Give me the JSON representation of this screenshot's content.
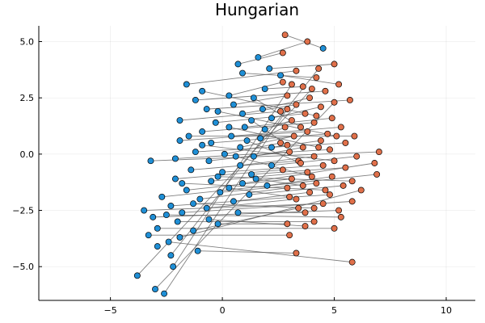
{
  "chart_data": {
    "type": "scatter",
    "title": "Hungarian",
    "xlabel": "",
    "ylabel": "",
    "xlim": [
      -8.2,
      11.3
    ],
    "ylim": [
      -6.5,
      5.7
    ],
    "xticks": [
      -5,
      0,
      5,
      10
    ],
    "yticks": [
      -5.0,
      -2.5,
      0.0,
      2.5,
      5.0
    ],
    "xtick_labels": [
      "−5",
      "0",
      "5",
      "10"
    ],
    "ytick_labels": [
      "−5.0",
      "−2.5",
      "0.0",
      "2.5",
      "5.0"
    ],
    "grid": true,
    "legend": "none",
    "colors": {
      "blue": "#1f8fd6",
      "orange": "#e0704a",
      "line": "#555555"
    },
    "series": [
      {
        "values": [
          [
            4.5,
            4.7
          ],
          [
            1.6,
            4.3
          ],
          [
            0.7,
            4.0
          ],
          [
            2.1,
            3.8
          ],
          [
            -1.6,
            3.1
          ],
          [
            0.9,
            3.6
          ],
          [
            2.6,
            3.5
          ],
          [
            0.3,
            2.6
          ],
          [
            1.9,
            2.9
          ],
          [
            -1.2,
            2.4
          ],
          [
            0.5,
            2.2
          ],
          [
            1.8,
            2.0
          ],
          [
            -0.7,
            2.0
          ],
          [
            0.9,
            1.8
          ],
          [
            2.2,
            1.6
          ],
          [
            -1.9,
            1.5
          ],
          [
            -0.3,
            1.4
          ],
          [
            1.0,
            1.2
          ],
          [
            1.9,
            1.1
          ],
          [
            -0.9,
            1.0
          ],
          [
            0.4,
            0.8
          ],
          [
            1.7,
            0.7
          ],
          [
            -1.9,
            0.6
          ],
          [
            -0.5,
            0.5
          ],
          [
            0.8,
            0.3
          ],
          [
            2.2,
            0.3
          ],
          [
            -1.2,
            0.1
          ],
          [
            0.1,
            0.0
          ],
          [
            1.4,
            -0.1
          ],
          [
            -2.1,
            -0.2
          ],
          [
            -0.6,
            -0.3
          ],
          [
            0.8,
            -0.5
          ],
          [
            2.2,
            -0.5
          ],
          [
            -3.2,
            -0.3
          ],
          [
            -1.4,
            -0.7
          ],
          [
            0.0,
            -0.8
          ],
          [
            1.3,
            -0.9
          ],
          [
            -2.1,
            -1.1
          ],
          [
            -0.5,
            -1.2
          ],
          [
            0.9,
            -1.3
          ],
          [
            2.0,
            -1.4
          ],
          [
            -1.6,
            -1.6
          ],
          [
            -0.1,
            -1.7
          ],
          [
            1.2,
            -1.8
          ],
          [
            -2.7,
            -1.9
          ],
          [
            -1.0,
            -2.0
          ],
          [
            0.5,
            -2.1
          ],
          [
            -2.3,
            -2.3
          ],
          [
            -0.7,
            -2.4
          ],
          [
            -3.5,
            -2.5
          ],
          [
            -1.8,
            -2.6
          ],
          [
            0.7,
            -2.6
          ],
          [
            -3.1,
            -2.8
          ],
          [
            -2.0,
            -3.0
          ],
          [
            -0.2,
            -3.1
          ],
          [
            -2.9,
            -3.3
          ],
          [
            -1.3,
            -3.4
          ],
          [
            -3.3,
            -3.6
          ],
          [
            -2.4,
            -3.9
          ],
          [
            -1.1,
            -4.3
          ],
          [
            -2.3,
            -4.5
          ],
          [
            -2.2,
            -5.0
          ],
          [
            -3.8,
            -5.4
          ],
          [
            -3.0,
            -6.0
          ],
          [
            -2.6,
            -6.2
          ],
          [
            -0.9,
            2.8
          ],
          [
            1.4,
            2.5
          ],
          [
            -0.2,
            1.9
          ],
          [
            1.3,
            1.5
          ],
          [
            0.3,
            1.2
          ],
          [
            -1.5,
            0.8
          ],
          [
            1.1,
            0.6
          ],
          [
            -0.9,
            0.4
          ],
          [
            0.6,
            -0.1
          ],
          [
            -0.2,
            -1.0
          ],
          [
            1.5,
            -1.1
          ],
          [
            -1.8,
            -1.3
          ],
          [
            0.3,
            -1.5
          ],
          [
            -1.3,
            -2.2
          ],
          [
            -2.5,
            -2.7
          ],
          [
            -0.6,
            -2.9
          ],
          [
            -1.9,
            -3.7
          ],
          [
            -2.9,
            -4.1
          ]
        ]
      },
      {
        "values": [
          [
            2.8,
            5.3
          ],
          [
            3.8,
            5.0
          ],
          [
            2.7,
            4.5
          ],
          [
            5.0,
            4.0
          ],
          [
            3.3,
            3.7
          ],
          [
            4.2,
            3.4
          ],
          [
            5.2,
            3.1
          ],
          [
            2.7,
            3.2
          ],
          [
            3.6,
            3.0
          ],
          [
            4.6,
            2.8
          ],
          [
            2.9,
            2.6
          ],
          [
            3.9,
            2.5
          ],
          [
            5.7,
            2.4
          ],
          [
            3.3,
            2.2
          ],
          [
            4.4,
            2.1
          ],
          [
            2.6,
            1.9
          ],
          [
            3.7,
            1.8
          ],
          [
            4.9,
            1.6
          ],
          [
            3.1,
            1.5
          ],
          [
            4.1,
            1.4
          ],
          [
            5.3,
            1.2
          ],
          [
            2.8,
            1.2
          ],
          [
            3.8,
            1.0
          ],
          [
            4.7,
            0.9
          ],
          [
            3.2,
            0.8
          ],
          [
            4.4,
            0.6
          ],
          [
            5.5,
            0.5
          ],
          [
            2.6,
            0.5
          ],
          [
            3.6,
            0.3
          ],
          [
            4.8,
            0.2
          ],
          [
            3.0,
            0.1
          ],
          [
            4.1,
            -0.1
          ],
          [
            6.0,
            -0.1
          ],
          [
            7.0,
            0.1
          ],
          [
            3.4,
            -0.3
          ],
          [
            4.5,
            -0.5
          ],
          [
            5.5,
            -0.6
          ],
          [
            2.7,
            -0.7
          ],
          [
            3.8,
            -0.8
          ],
          [
            6.8,
            -0.4
          ],
          [
            4.9,
            -1.0
          ],
          [
            3.1,
            -1.1
          ],
          [
            4.2,
            -1.3
          ],
          [
            5.4,
            -1.4
          ],
          [
            6.9,
            -0.9
          ],
          [
            2.9,
            -1.5
          ],
          [
            3.9,
            -1.7
          ],
          [
            4.8,
            -1.8
          ],
          [
            3.3,
            -2.0
          ],
          [
            4.5,
            -2.2
          ],
          [
            5.8,
            -2.1
          ],
          [
            3.7,
            -2.6
          ],
          [
            5.2,
            -2.5
          ],
          [
            4.1,
            -3.0
          ],
          [
            2.9,
            -3.1
          ],
          [
            5.0,
            -3.3
          ],
          [
            3.4,
            -2.4
          ],
          [
            3.0,
            -3.6
          ],
          [
            5.8,
            -4.8
          ],
          [
            3.3,
            -4.4
          ],
          [
            4.3,
            3.8
          ],
          [
            3.1,
            3.1
          ],
          [
            4.0,
            2.9
          ],
          [
            5.0,
            2.3
          ],
          [
            2.9,
            2.0
          ],
          [
            4.2,
            1.7
          ],
          [
            3.5,
            1.2
          ],
          [
            5.1,
            0.8
          ],
          [
            2.9,
            0.4
          ],
          [
            4.3,
            0.3
          ],
          [
            5.9,
            0.8
          ],
          [
            3.5,
            -0.4
          ],
          [
            5.0,
            -0.3
          ],
          [
            4.0,
            -1.0
          ],
          [
            5.8,
            -1.2
          ],
          [
            3.6,
            -1.4
          ],
          [
            4.6,
            -1.6
          ],
          [
            3.0,
            -1.9
          ],
          [
            4.1,
            -2.4
          ],
          [
            5.3,
            -2.8
          ],
          [
            3.7,
            -3.2
          ],
          [
            6.2,
            -1.6
          ]
        ]
      }
    ]
  }
}
